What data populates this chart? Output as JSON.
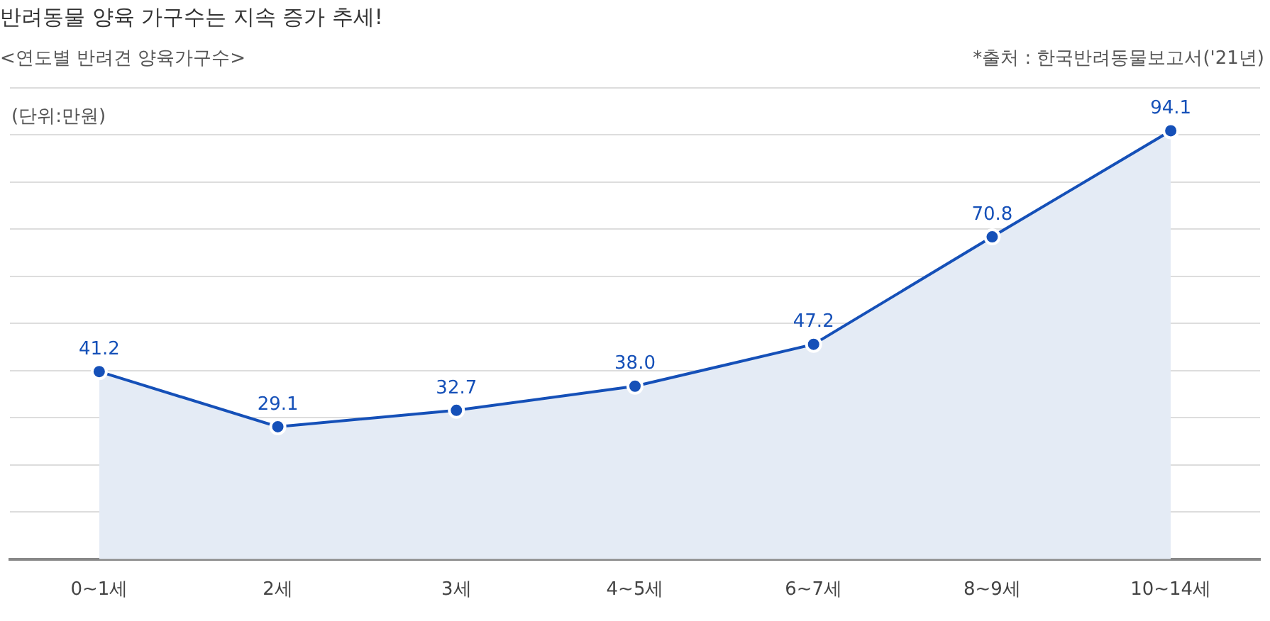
{
  "chart_data": {
    "type": "area",
    "title": "반려동물 양육 가구수는 지속 증가 추세!",
    "subtitle": "<연도별 반려견 양육가구수>",
    "ylabel": "(단위:만원)",
    "annotations": [
      "*출처 : 한국반려동물보고서('21년)"
    ],
    "categories": [
      "0~1세",
      "2세",
      "3세",
      "4~5세",
      "6~7세",
      "8~9세",
      "10~14세"
    ],
    "series": [
      {
        "color": "#1550b8",
        "values": [
          41.2,
          29.1,
          32.7,
          38.0,
          47.2,
          70.8,
          94.1
        ],
        "value_labels": [
          "41.2",
          "29.1",
          "32.7",
          "38.0",
          "47.2",
          "70.8",
          "94.1"
        ]
      }
    ],
    "grid": "y",
    "marker": "circle",
    "legend": false
  }
}
